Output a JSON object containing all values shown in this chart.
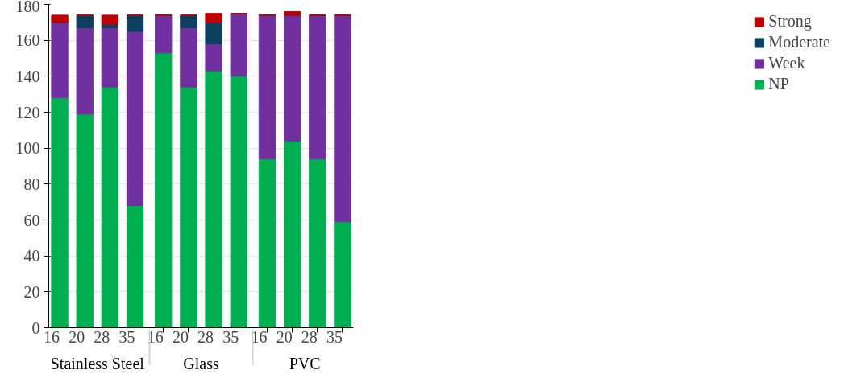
{
  "chart_data": {
    "type": "bar",
    "stacked": true,
    "categories": [
      "16",
      "20",
      "28",
      "35",
      "16",
      "20",
      "28",
      "35",
      "16",
      "20",
      "28",
      "35"
    ],
    "annotations": [
      "Stainless Steel",
      "Glass",
      "PVC"
    ],
    "series": [
      {
        "name": "NP",
        "color": "#00b050",
        "values": [
          128,
          119,
          134,
          68,
          153,
          134,
          143,
          140,
          94,
          104,
          94,
          59
        ]
      },
      {
        "name": "Week",
        "color": "#7030a0",
        "values": [
          42,
          48,
          33,
          97,
          21,
          33,
          15,
          35,
          80,
          70,
          80,
          115
        ]
      },
      {
        "name": "Moderate",
        "color": "#0f3f5f",
        "values": [
          0,
          7,
          2,
          9,
          0,
          7,
          12,
          0,
          0,
          0,
          0,
          0
        ]
      },
      {
        "name": "Strong",
        "color": "#c00000",
        "values": [
          4,
          0,
          5,
          0,
          0,
          0,
          5,
          0,
          0,
          2,
          0,
          0
        ]
      }
    ],
    "ylim": [
      0,
      180
    ],
    "yticks": [
      0,
      20,
      40,
      60,
      80,
      100,
      120,
      140,
      160,
      180
    ],
    "grid": "y",
    "legend": "right"
  }
}
